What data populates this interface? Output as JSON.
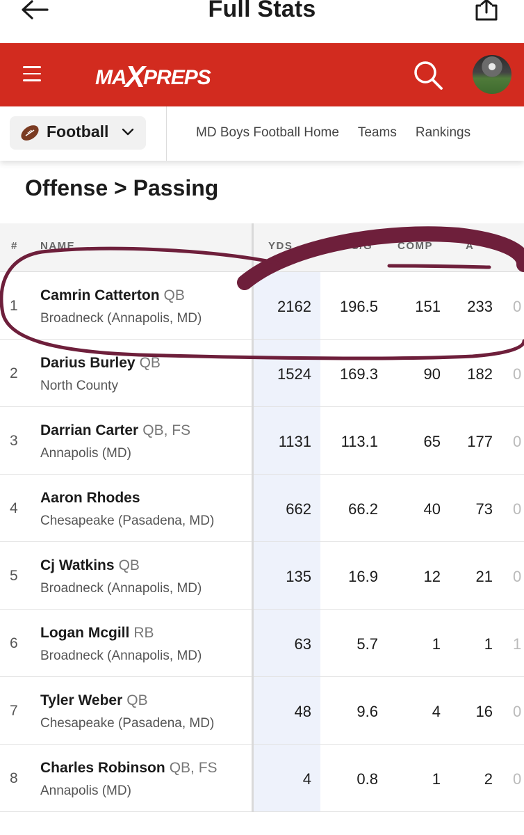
{
  "header": {
    "title": "Full Stats"
  },
  "brand": {
    "logo_text_left": "MA",
    "logo_text_x": "X",
    "logo_text_right": "PREPS",
    "color": "#d22b1f"
  },
  "sport": {
    "label": "Football"
  },
  "nav": {
    "links": [
      "MD Boys Football Home",
      "Teams",
      "Rankings"
    ]
  },
  "section": {
    "title": "Offense > Passing"
  },
  "table": {
    "columns": {
      "rank": "#",
      "name": "NAME",
      "yds": "YDS",
      "ydsg": "YDS/G",
      "comp": "COMP",
      "att": "A"
    },
    "rows": [
      {
        "rank": "1",
        "name": "Camrin Catterton",
        "pos": "QB",
        "school": "Broadneck (Annapolis, MD)",
        "yds": "2162",
        "ydsg": "196.5",
        "comp": "151",
        "att": "233",
        "next": "0"
      },
      {
        "rank": "2",
        "name": "Darius Burley",
        "pos": "QB",
        "school": "North County",
        "yds": "1524",
        "ydsg": "169.3",
        "comp": "90",
        "att": "182",
        "next": "0"
      },
      {
        "rank": "3",
        "name": "Darrian Carter",
        "pos": "QB, FS",
        "school": "Annapolis (MD)",
        "yds": "1131",
        "ydsg": "113.1",
        "comp": "65",
        "att": "177",
        "next": "0"
      },
      {
        "rank": "4",
        "name": "Aaron Rhodes",
        "pos": "",
        "school": "Chesapeake (Pasadena, MD)",
        "yds": "662",
        "ydsg": "66.2",
        "comp": "40",
        "att": "73",
        "next": "0"
      },
      {
        "rank": "5",
        "name": "Cj Watkins",
        "pos": "QB",
        "school": "Broadneck (Annapolis, MD)",
        "yds": "135",
        "ydsg": "16.9",
        "comp": "12",
        "att": "21",
        "next": "0"
      },
      {
        "rank": "6",
        "name": "Logan Mcgill",
        "pos": "RB",
        "school": "Broadneck (Annapolis, MD)",
        "yds": "63",
        "ydsg": "5.7",
        "comp": "1",
        "att": "1",
        "next": "1"
      },
      {
        "rank": "7",
        "name": "Tyler Weber",
        "pos": "QB",
        "school": "Chesapeake (Pasadena, MD)",
        "yds": "48",
        "ydsg": "9.6",
        "comp": "4",
        "att": "16",
        "next": "0"
      },
      {
        "rank": "8",
        "name": "Charles Robinson",
        "pos": "QB, FS",
        "school": "Annapolis (MD)",
        "yds": "4",
        "ydsg": "0.8",
        "comp": "1",
        "att": "2",
        "next": "0"
      }
    ]
  },
  "icons": {
    "back": "arrow-left-icon",
    "share": "share-icon",
    "menu": "hamburger-menu-icon",
    "search": "search-icon",
    "ball": "football-icon",
    "chevron": "chevron-down-icon"
  },
  "colors": {
    "annotation": "#6e1f3b",
    "yds_column_bg": "#eef2fb"
  }
}
